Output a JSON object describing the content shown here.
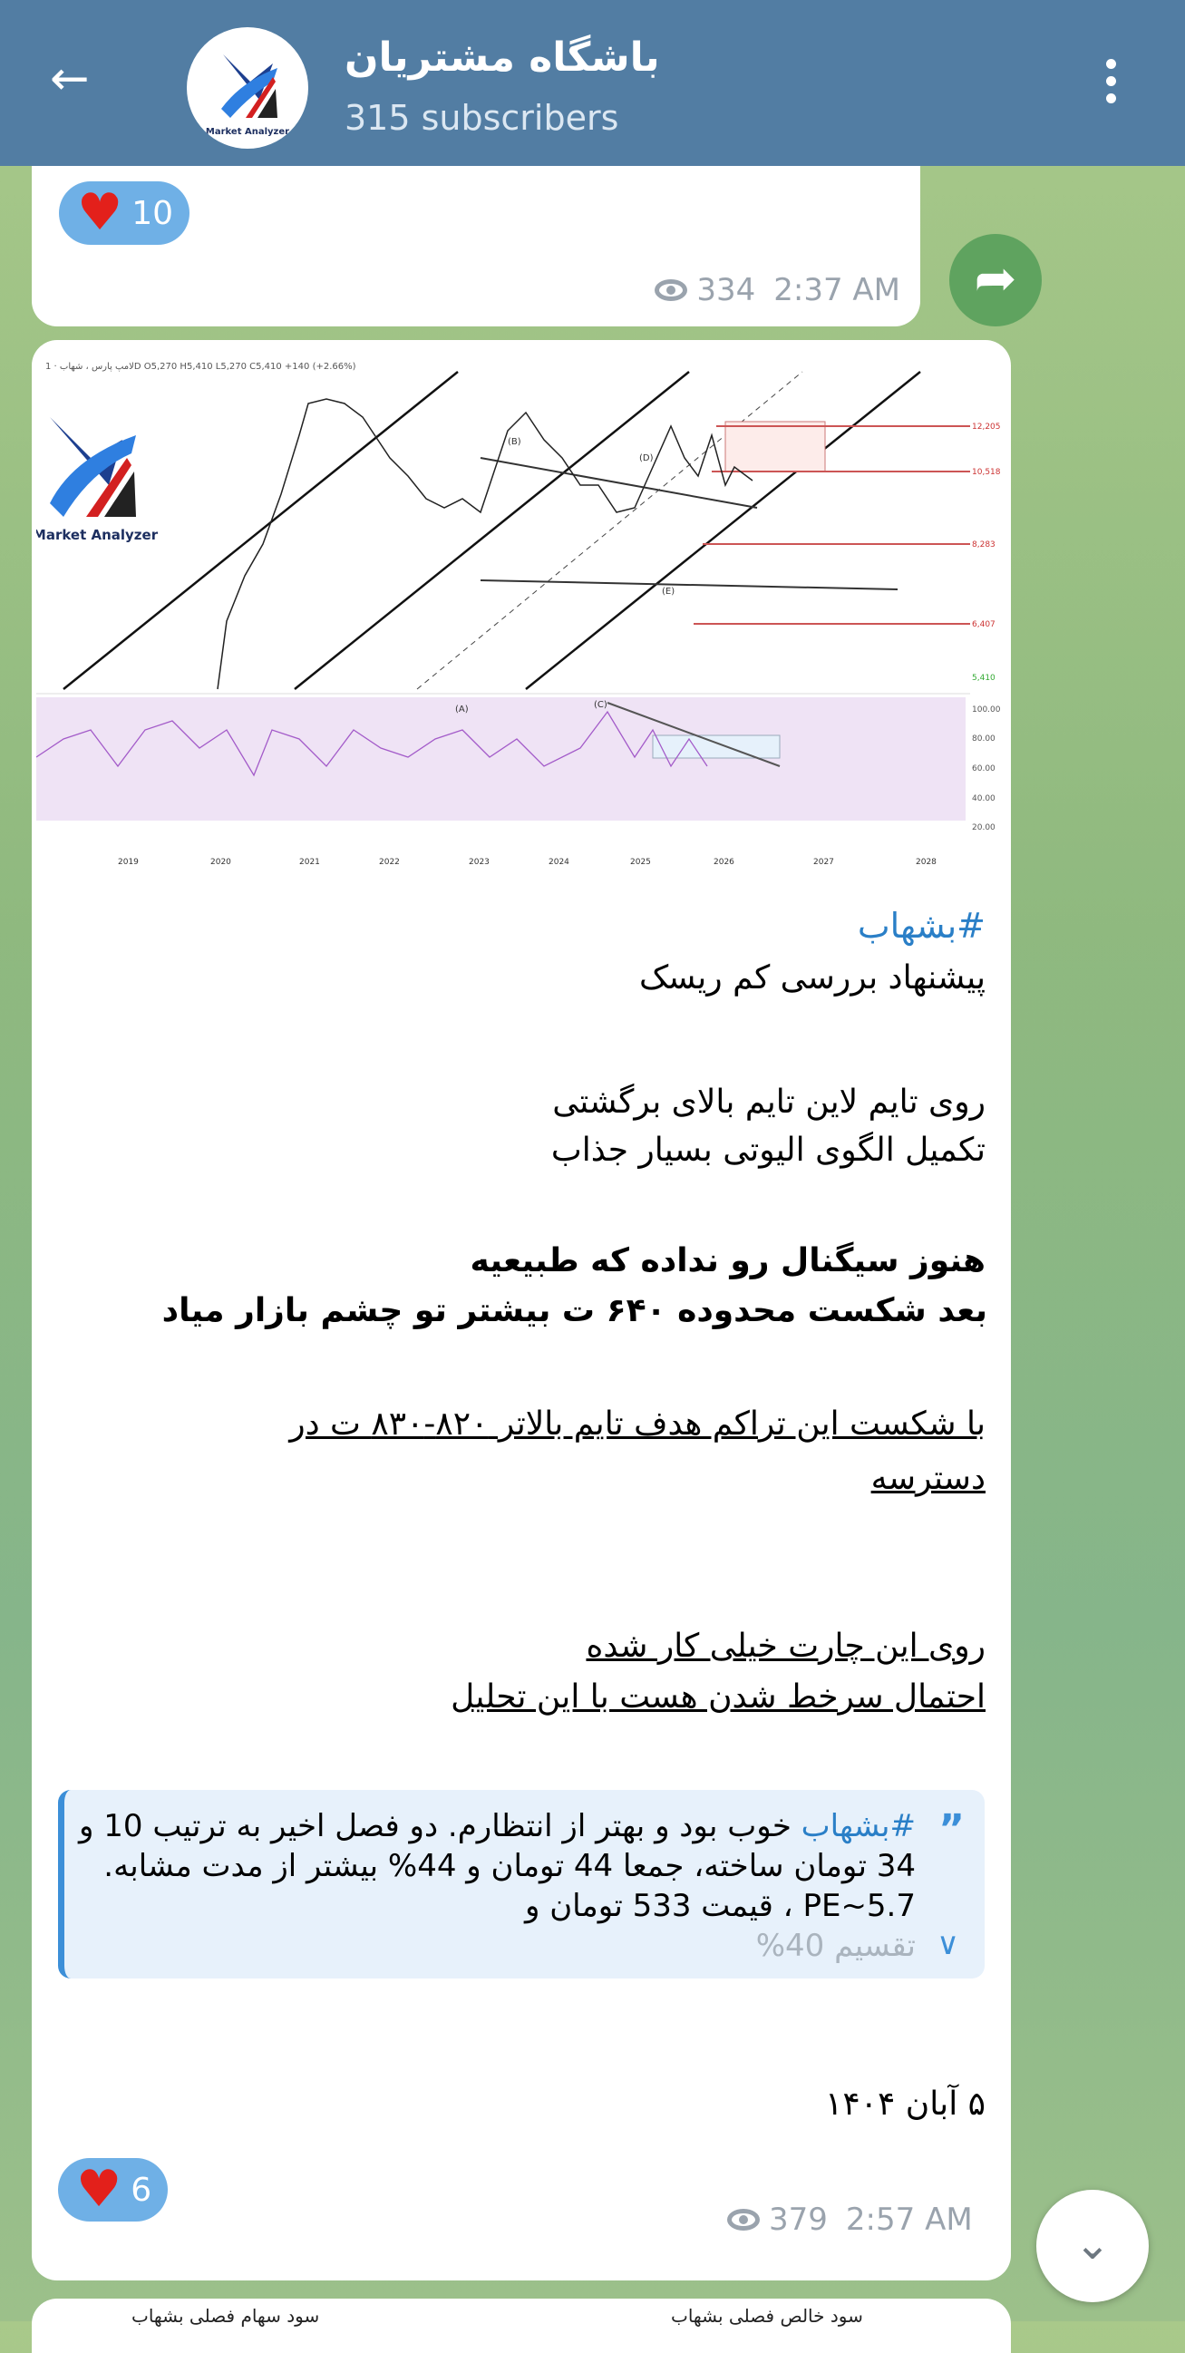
{
  "header": {
    "title": "باشگاه مشتریان",
    "subtitle": "315 subscribers",
    "avatar_text": "Market Analyzer"
  },
  "prev_post": {
    "reaction": "10",
    "views": "334",
    "time": "2:37 AM"
  },
  "post": {
    "chart_image": {
      "ticker_line": "لامپ پارس ، شهاب · 1D  O5,270 H5,410 L5,270 C5,410 +140 (+2.66%)",
      "logo_text": "Market Analyzer",
      "waves": [
        "(A)",
        "(B)",
        "(C)",
        "(D)",
        "(E)"
      ],
      "price_levels": [
        "12,205",
        "10,518",
        "8,283",
        "6,407",
        "5,410"
      ],
      "years": [
        "2019",
        "2020",
        "2021",
        "2022",
        "2023",
        "2024",
        "2025",
        "2026",
        "2027",
        "2028"
      ],
      "rsi_levels": [
        "100.00",
        "80.00",
        "60.00",
        "40.00",
        "20.00"
      ]
    },
    "hashtag": "#بشهاب",
    "lines": [
      "پیشنهاد بررسی کم ریسک",
      "روی تایم لاین تایم بالای برگشتی",
      "تکمیل الگوی الیوتی بسیار جذاب",
      "هنوز سیگنال رو نداده که طبیعیه",
      "بعد شکست محدوده ۶۴۰ ت بیشتر تو چشم بازار میاد",
      "با شکست این تراکم هدف تایم بالاتر ۸۲۰-۸۳۰ ت در",
      "دسترسه",
      "روی این چارت خیلی کار شده",
      "احتمال سرخط شدن هست با این تحلیل"
    ],
    "quote": {
      "hashtag": "#بشهاب",
      "text": " خوب بود و بهتر از انتظارم. دو فصل اخیر به ترتیب 10 و 34 تومان ساخته، جمعا 44 تومان و 44% بیشتر از مدت مشابه. PE~5.7 ، قیمت 533 تومان و",
      "fade": "تقسیم 40%"
    },
    "date": "۵ آبان ۱۴۰۴",
    "reaction": "6",
    "views": "379",
    "time": "2:57 AM"
  },
  "next_post": {
    "caption_left": "سود سهام فصلی بشهاب",
    "caption_right": "سود خالص فصلی بشهاب"
  }
}
